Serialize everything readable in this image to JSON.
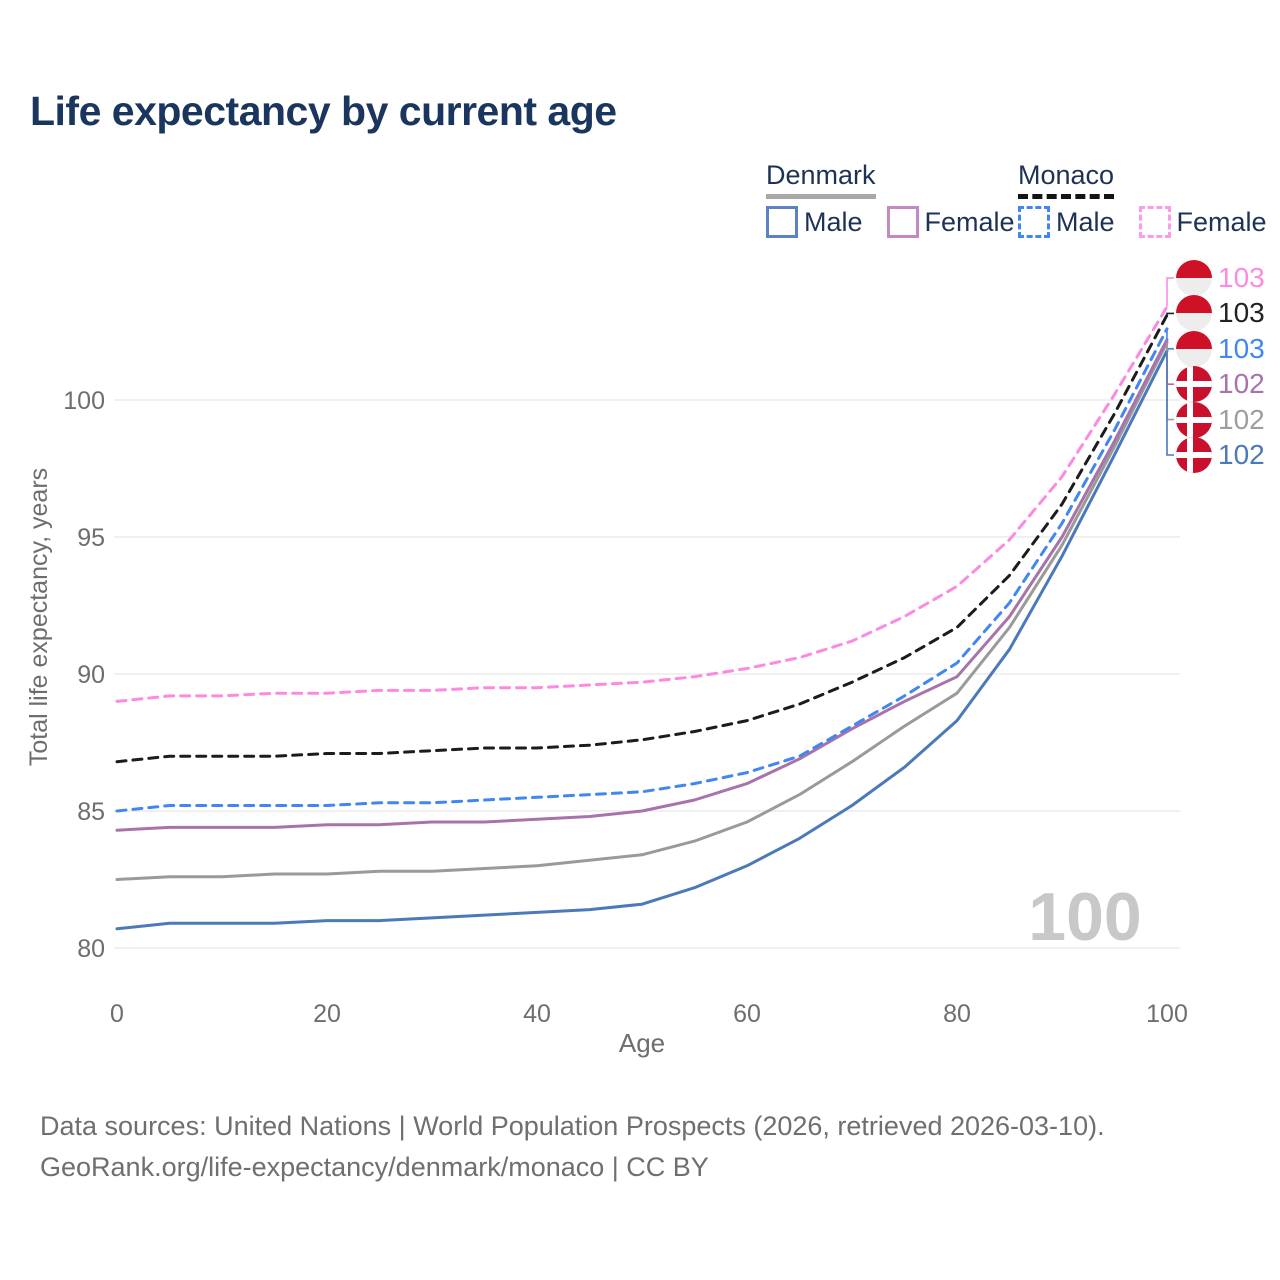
{
  "title": "Life expectancy by current age",
  "legend": {
    "groups": [
      {
        "name": "Denmark",
        "underline": "solid",
        "underline_color": "#a8a8a8",
        "items": [
          {
            "label": "Male",
            "color": "#5b82c3",
            "dashed": false
          },
          {
            "label": "Female",
            "color": "#c488c2",
            "dashed": false
          }
        ]
      },
      {
        "name": "Monaco",
        "underline": "dashed",
        "underline_color": "#141414",
        "items": [
          {
            "label": "Male",
            "color": "#4285f4",
            "dashed": true
          },
          {
            "label": "Female",
            "color": "#fc9be8",
            "dashed": true
          }
        ]
      }
    ]
  },
  "chart_data": {
    "type": "line",
    "title": "Life expectancy by current age",
    "xlabel": "Age",
    "ylabel": "Total life expectancy, years",
    "x": [
      0,
      5,
      10,
      15,
      20,
      25,
      30,
      35,
      40,
      45,
      50,
      55,
      60,
      65,
      70,
      75,
      80,
      85,
      90,
      95,
      100
    ],
    "xticks": [
      0,
      20,
      40,
      60,
      80,
      100
    ],
    "yticks": [
      80,
      85,
      90,
      95,
      100
    ],
    "xlim": [
      0,
      100
    ],
    "ylim": [
      79.3,
      104.2
    ],
    "grid": "horizontal",
    "legend_position": "top-right",
    "series": [
      {
        "name": "Denmark Male",
        "country": "Denmark",
        "sex": "Male",
        "style": "solid",
        "color": "#4b79ba",
        "values": [
          80.7,
          80.9,
          80.9,
          80.9,
          81.0,
          81.0,
          81.1,
          81.2,
          81.3,
          81.4,
          81.6,
          82.2,
          83.0,
          84.0,
          85.2,
          86.6,
          88.3,
          90.9,
          94.3,
          98.0,
          101.8
        ],
        "end_label": "102"
      },
      {
        "name": "Denmark (both sexes)",
        "country": "Denmark",
        "sex": "All",
        "style": "solid",
        "color": "#9a9a9a",
        "values": [
          82.5,
          82.6,
          82.6,
          82.7,
          82.7,
          82.8,
          82.8,
          82.9,
          83.0,
          83.2,
          83.4,
          83.9,
          84.6,
          85.6,
          86.8,
          88.1,
          89.3,
          91.7,
          94.7,
          98.3,
          102.1
        ],
        "end_label": "102"
      },
      {
        "name": "Denmark Female",
        "country": "Denmark",
        "sex": "Female",
        "style": "solid",
        "color": "#a873aa",
        "values": [
          84.3,
          84.4,
          84.4,
          84.4,
          84.5,
          84.5,
          84.6,
          84.6,
          84.7,
          84.8,
          85.0,
          85.4,
          86.0,
          86.9,
          88.0,
          89.0,
          89.9,
          92.1,
          95.0,
          98.5,
          102.2
        ],
        "end_label": "102"
      },
      {
        "name": "Monaco Male",
        "country": "Monaco",
        "sex": "Male",
        "style": "dashed",
        "color": "#4187f2",
        "values": [
          85.0,
          85.2,
          85.2,
          85.2,
          85.2,
          85.3,
          85.3,
          85.4,
          85.5,
          85.6,
          85.7,
          86.0,
          86.4,
          87.0,
          88.1,
          89.2,
          90.4,
          92.6,
          95.5,
          98.9,
          102.6
        ],
        "end_label": "103"
      },
      {
        "name": "Monaco (both sexes)",
        "country": "Monaco",
        "sex": "All",
        "style": "dashed",
        "color": "#1c1c1c",
        "values": [
          86.8,
          87.0,
          87.0,
          87.0,
          87.1,
          87.1,
          87.2,
          87.3,
          87.3,
          87.4,
          87.6,
          87.9,
          88.3,
          88.9,
          89.7,
          90.6,
          91.7,
          93.6,
          96.2,
          99.5,
          103.1
        ],
        "end_label": "103"
      },
      {
        "name": "Monaco Female",
        "country": "Monaco",
        "sex": "Female",
        "style": "dashed",
        "color": "#fb8ae1",
        "values": [
          89.0,
          89.2,
          89.2,
          89.3,
          89.3,
          89.4,
          89.4,
          89.5,
          89.5,
          89.6,
          89.7,
          89.9,
          90.2,
          90.6,
          91.2,
          92.1,
          93.2,
          94.9,
          97.2,
          100.2,
          103.4
        ],
        "end_label": "103"
      }
    ],
    "watermark": "100"
  },
  "end_labels": [
    {
      "text": "103",
      "color": "#fb8ae1",
      "flag": "monaco",
      "series": "Monaco Female"
    },
    {
      "text": "103",
      "color": "#222222",
      "flag": "monaco",
      "series": "Monaco (both sexes)"
    },
    {
      "text": "103",
      "color": "#4187f2",
      "flag": "monaco",
      "series": "Monaco Male"
    },
    {
      "text": "102",
      "color": "#a873aa",
      "flag": "denmark",
      "series": "Denmark Female"
    },
    {
      "text": "102",
      "color": "#9e9e9e",
      "flag": "denmark",
      "series": "Denmark (both sexes)"
    },
    {
      "text": "102",
      "color": "#4b79ba",
      "flag": "denmark",
      "series": "Denmark Male"
    }
  ],
  "footer": {
    "line1": "Data sources: United Nations | World Population Prospects (2026, retrieved 2026-03-10).",
    "line2": "GeoRank.org/life-expectancy/denmark/monaco | CC BY"
  }
}
